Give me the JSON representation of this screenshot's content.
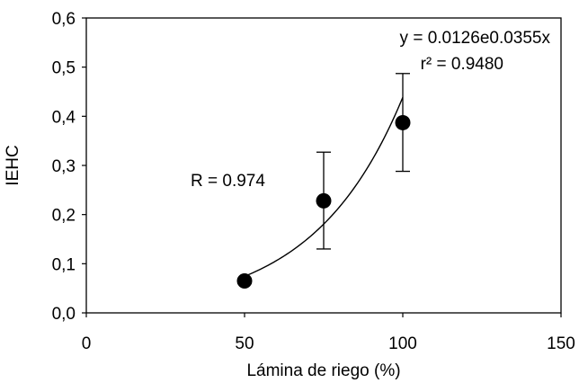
{
  "chart_data": {
    "type": "scatter",
    "title": "",
    "xlabel": "Lámina de riego (%)",
    "ylabel": "IEHC",
    "xlim": [
      0,
      150
    ],
    "ylim": [
      0.0,
      0.6
    ],
    "x_ticks": [
      0,
      50,
      100,
      150
    ],
    "x_tick_labels": [
      "0",
      "50",
      "100",
      "150"
    ],
    "y_ticks": [
      0.0,
      0.1,
      0.2,
      0.3,
      0.4,
      0.5,
      0.6
    ],
    "y_tick_labels": [
      "0,0",
      "0,1",
      "0,2",
      "0,3",
      "0,4",
      "0,5",
      "0,6"
    ],
    "grid": false,
    "series": [
      {
        "points": [
          {
            "x": 50,
            "y": 0.065,
            "err_low": 0.06,
            "err_high": 0.07
          },
          {
            "x": 75,
            "y": 0.228,
            "err_low": 0.13,
            "err_high": 0.327
          },
          {
            "x": 100,
            "y": 0.387,
            "err_low": 0.288,
            "err_high": 0.487
          }
        ]
      }
    ],
    "trendline": {
      "type": "exponential",
      "a": 0.0126,
      "b": 0.0355,
      "x_range": [
        50,
        100
      ]
    },
    "annotations": {
      "equation": "y = 0.0126e0.0355x",
      "r_squared": "r² = 0.9480",
      "r_value": "R = 0.974"
    }
  }
}
